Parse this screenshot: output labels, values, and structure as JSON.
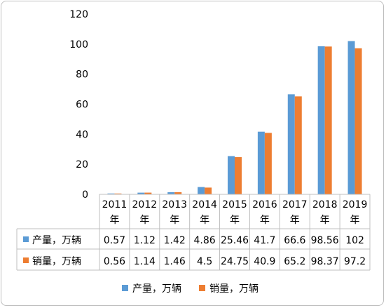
{
  "chart_data": {
    "type": "bar",
    "categories": [
      "2011\n年",
      "2012\n年",
      "2013\n年",
      "2014\n年",
      "2015\n年",
      "2016\n年",
      "2017\n年",
      "2018\n年",
      "2019\n年"
    ],
    "series": [
      {
        "name": "产量，万辆",
        "color": "#5b9bd5",
        "values": [
          0.57,
          1.12,
          1.42,
          4.86,
          25.46,
          41.7,
          66.6,
          98.56,
          102
        ]
      },
      {
        "name": "销量，万辆",
        "color": "#ed7d31",
        "values": [
          0.56,
          1.14,
          1.46,
          4.5,
          24.75,
          40.9,
          65.2,
          98.37,
          97.2
        ]
      }
    ],
    "value_labels": [
      [
        "0.57",
        "1.12",
        "1.42",
        "4.86",
        "25.46",
        "41.7",
        "66.6",
        "98.56",
        "102"
      ],
      [
        "0.56",
        "1.14",
        "1.46",
        "4.5",
        "24.75",
        "40.9",
        "65.2",
        "98.37",
        "97.2"
      ]
    ],
    "yticks": [
      "0",
      "20",
      "40",
      "60",
      "80",
      "100",
      "120"
    ],
    "ylim": [
      0,
      120
    ],
    "grid": false,
    "legend": "bottom",
    "data_table": true
  }
}
